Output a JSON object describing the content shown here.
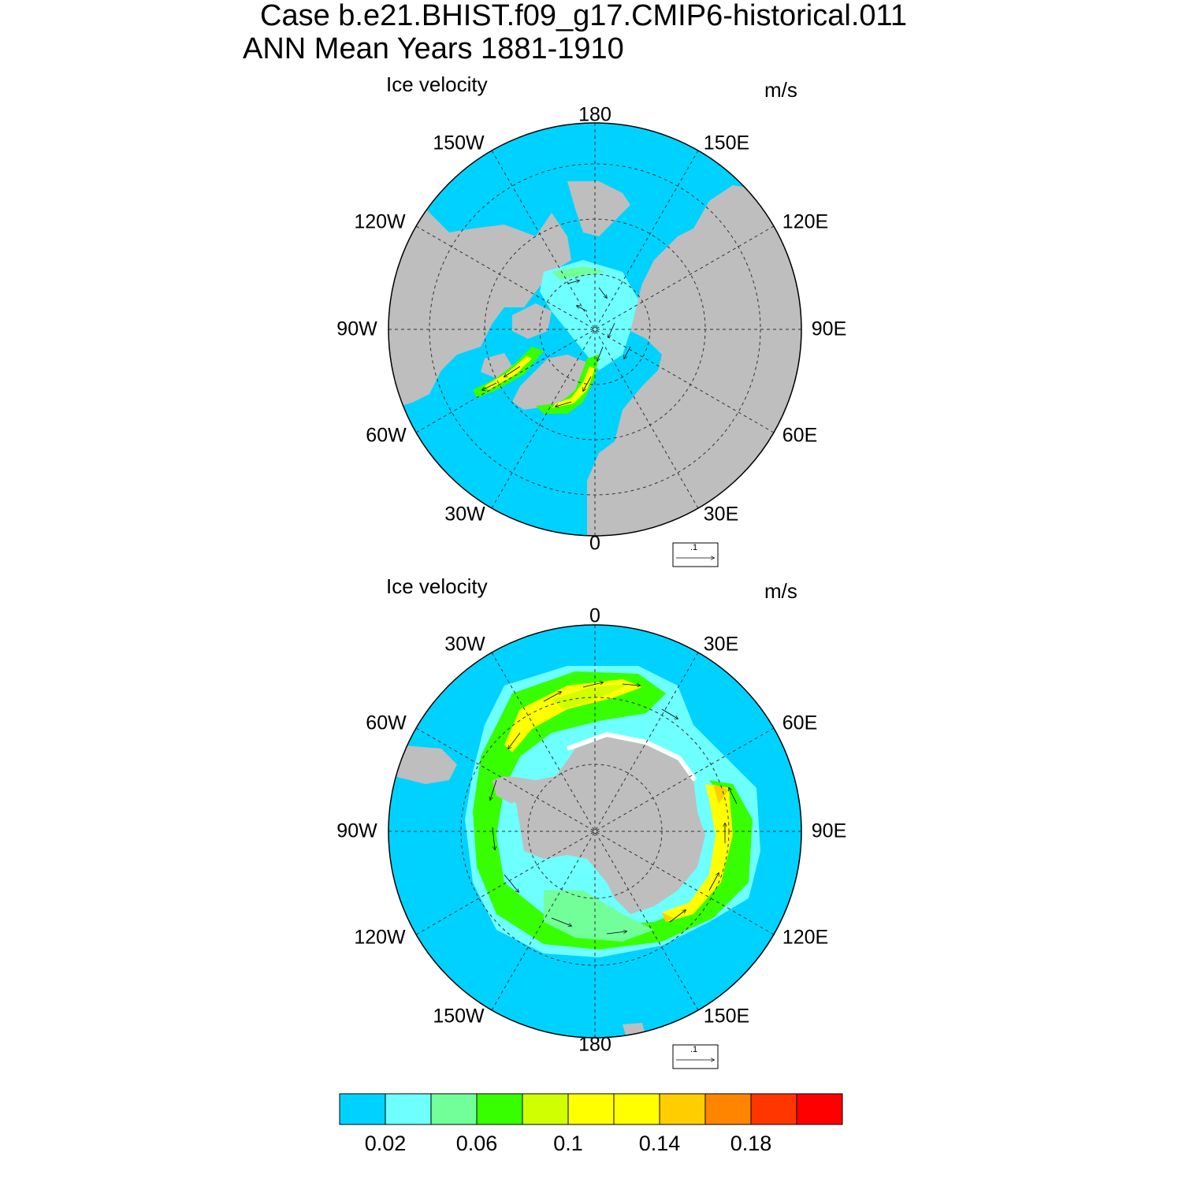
{
  "header": {
    "case_line": "Case b.e21.BHIST.f09_g17.CMIP6-historical.011",
    "period_line": "ANN Mean   Years 1881-1910"
  },
  "panels": [
    {
      "id": "north",
      "hemisphere": "Northern",
      "title": "Ice velocity",
      "units": "m/s",
      "lon_labels": [
        "180",
        "150E",
        "120E",
        "90E",
        "60E",
        "30E",
        "0",
        "30W",
        "60W",
        "90W",
        "120W",
        "150W"
      ],
      "ref_vector_label": ".1"
    },
    {
      "id": "south",
      "hemisphere": "Southern",
      "title": "Ice velocity",
      "units": "m/s",
      "lon_labels": [
        "0",
        "30E",
        "60E",
        "90E",
        "120E",
        "150E",
        "180",
        "150W",
        "120W",
        "90W",
        "60W",
        "30W"
      ],
      "ref_vector_label": ".1"
    }
  ],
  "colorbar": {
    "colors": [
      "#00d2ff",
      "#6effff",
      "#72ff9a",
      "#37ff00",
      "#cfff00",
      "#ffff00",
      "#ffff00",
      "#ffcd00",
      "#ff8400",
      "#ff3600",
      "#ff0000"
    ],
    "labels": [
      "0.02",
      "0.06",
      "0.1",
      "0.14",
      "0.18"
    ]
  },
  "colors": {
    "ocean": "#00d2ff",
    "land": "#bebebe"
  }
}
